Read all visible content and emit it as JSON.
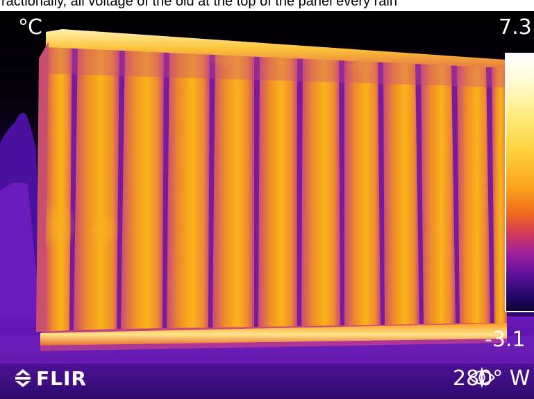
{
  "caption": {
    "text": "ractionally, all voltage of the old at the top of the panel every rain"
  },
  "thermal_image": {
    "camera_brand": "FLIR",
    "unit": "°C",
    "scale_max": "7.3",
    "scale_min": "-3.1",
    "compass_heading": "280° W",
    "palette": "iron",
    "subject": "panel",
    "colors": {
      "hot": "#fff7c9",
      "warm": "#f7a51a",
      "mid": "#d94f2a",
      "cool": "#8a24b8",
      "cold": "#2c0a66",
      "background": "#000000"
    }
  }
}
